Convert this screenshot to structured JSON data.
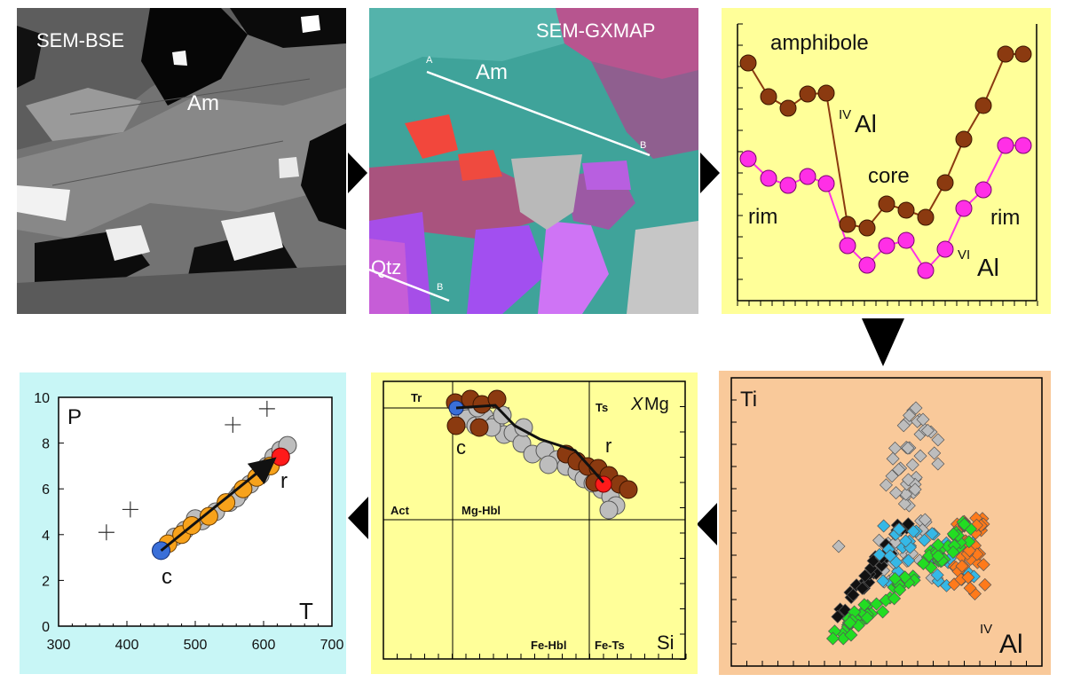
{
  "panel_bse": {
    "title": "SEM-BSE",
    "mineral": "Am"
  },
  "panel_gxmap": {
    "title": "SEM-GXMAP",
    "mineral": "Am",
    "qtz": "Qtz",
    "line_a": "A",
    "line_b": "B",
    "line2_b": "B"
  },
  "panel_profile": {
    "title": "amphibole",
    "label_ivAl_sup": "IV",
    "label_ivAl": "Al",
    "label_viAl_sup": "VI",
    "label_viAl": "Al",
    "label_core": "core",
    "label_rim_left": "rim",
    "label_rim_right": "rim",
    "colors": {
      "ivAl": "#8b3a10",
      "viAl": "#ff2fe6",
      "bg": "#ffff99"
    }
  },
  "panel_ti": {
    "ylabel": "Ti",
    "xlabel_sup": "IV",
    "xlabel": "Al",
    "colors": {
      "bg": "#f9c99a",
      "grey": "#bdbdbd",
      "black": "#111111",
      "green": "#22dd22",
      "blue": "#35b8e6",
      "orange": "#ff7a1a"
    }
  },
  "panel_class": {
    "xlabel": "Si",
    "ylabel_italic": "X",
    "ylabel": "Mg",
    "fields": {
      "tr": "Tr",
      "ts": "Ts",
      "act": "Act",
      "mg_hbl": "Mg-Hbl",
      "fe_hbl": "Fe-Hbl",
      "fe_ts": "Fe-Ts"
    },
    "label_c": "c",
    "label_r": "r"
  },
  "panel_pt": {
    "ylabel": "P",
    "xlabel": "T",
    "label_c": "c",
    "label_r": "r",
    "chart_data": {
      "type": "scatter",
      "xlim": [
        300,
        700
      ],
      "ylim": [
        0,
        10
      ],
      "xticks": [
        300,
        400,
        500,
        600,
        700
      ],
      "yticks": [
        0,
        2,
        4,
        6,
        8,
        10
      ],
      "series": [
        {
          "points": [
            [
              370,
              4.1
            ],
            [
              405,
              5.1
            ],
            [
              555,
              8.8
            ],
            [
              605,
              9.5
            ]
          ],
          "marker": "cross"
        },
        {
          "points": [
            [
              470,
              3.9
            ],
            [
              485,
              4.2
            ],
            [
              510,
              4.6
            ],
            [
              530,
              5.0
            ],
            [
              550,
              5.4
            ],
            [
              565,
              5.8
            ],
            [
              580,
              6.2
            ],
            [
              595,
              6.6
            ],
            [
              605,
              7.0
            ],
            [
              615,
              7.4
            ],
            [
              625,
              7.7
            ],
            [
              635,
              7.9
            ],
            [
              500,
              4.7
            ],
            [
              560,
              5.6
            ]
          ],
          "marker": "grey"
        },
        {
          "points": [
            [
              460,
              3.6
            ],
            [
              480,
              4.0
            ],
            [
              495,
              4.4
            ],
            [
              520,
              4.8
            ],
            [
              545,
              5.4
            ],
            [
              570,
              6.0
            ],
            [
              590,
              6.5
            ],
            [
              610,
              7.0
            ]
          ],
          "marker": "orange"
        },
        {
          "points": [
            [
              450,
              3.3
            ]
          ],
          "marker": "blue"
        },
        {
          "points": [
            [
              625,
              7.4
            ]
          ],
          "marker": "red"
        }
      ],
      "arrow": [
        [
          450,
          3.3
        ],
        [
          625,
          7.4
        ]
      ]
    }
  }
}
